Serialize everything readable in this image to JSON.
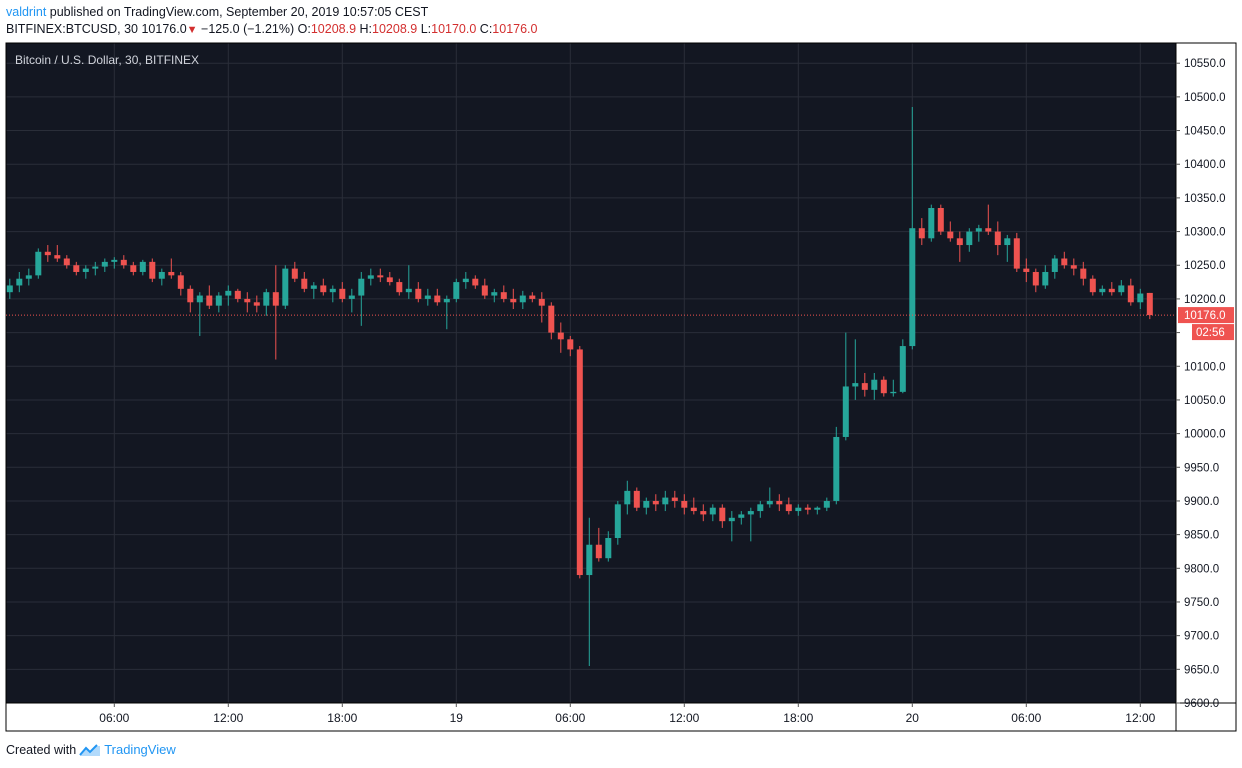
{
  "header": {
    "user": "valdrint",
    "published_text": "published on TradingView.com, September 20, 2019 10:57:05 CEST",
    "symbol": "BITFINEX:BTCUSD, 30",
    "last_price": "10176.0",
    "change": "−125.0 (−1.21%)",
    "o_label": "O:",
    "o_value": "10208.9",
    "h_label": "H:",
    "h_value": "10208.9",
    "l_label": "L:",
    "l_value": "10170.0",
    "c_label": "C:",
    "c_value": "10176.0"
  },
  "footer": {
    "created_with": "Created with",
    "brand": "TradingView"
  },
  "colors": {
    "background": "#131722",
    "grid": "#2a2e39",
    "up": "#26a69a",
    "down": "#ef5350",
    "axis_text": "#b2b5be",
    "price_tag": "#ef5350"
  },
  "chart_data": {
    "type": "candlestick",
    "title": "Bitcoin / U.S. Dollar, 30, BITFINEX",
    "ylim": [
      9600,
      10580
    ],
    "y_ticks": [
      10550,
      10500,
      10450,
      10400,
      10350,
      10300,
      10250,
      10200,
      10150,
      10100,
      10050,
      10000,
      9950,
      9900,
      9850,
      9800,
      9750,
      9700,
      9650,
      9600
    ],
    "y_tick_labels": [
      "10550.0",
      "10500.0",
      "10450.0",
      "10400.0",
      "10350.0",
      "10300.0",
      "10250.0",
      "10200.0",
      "",
      "10100.0",
      "10050.0",
      "10000.0",
      "9950.0",
      "9900.0",
      "9850.0",
      "9800.0",
      "9750.0",
      "9700.0",
      "9650.0",
      "9600.0"
    ],
    "x_ticks": [
      {
        "bar": 11,
        "label": "06:00"
      },
      {
        "bar": 23,
        "label": "12:00"
      },
      {
        "bar": 35,
        "label": "18:00"
      },
      {
        "bar": 47,
        "label": "19"
      },
      {
        "bar": 59,
        "label": "06:00"
      },
      {
        "bar": 71,
        "label": "12:00"
      },
      {
        "bar": 83,
        "label": "18:00"
      },
      {
        "bar": 95,
        "label": "20"
      },
      {
        "bar": 107,
        "label": "06:00"
      },
      {
        "bar": 119,
        "label": "12:00"
      }
    ],
    "current_price": 10176.0,
    "current_price_label": "10176.0",
    "countdown": "02:56",
    "candles": [
      [
        10210,
        10230,
        10200,
        10220
      ],
      [
        10220,
        10240,
        10210,
        10230
      ],
      [
        10230,
        10245,
        10220,
        10235
      ],
      [
        10235,
        10275,
        10230,
        10270
      ],
      [
        10270,
        10280,
        10255,
        10265
      ],
      [
        10265,
        10280,
        10255,
        10260
      ],
      [
        10260,
        10265,
        10245,
        10250
      ],
      [
        10250,
        10255,
        10235,
        10240
      ],
      [
        10240,
        10250,
        10230,
        10245
      ],
      [
        10245,
        10255,
        10235,
        10248
      ],
      [
        10248,
        10260,
        10240,
        10255
      ],
      [
        10255,
        10262,
        10245,
        10258
      ],
      [
        10258,
        10265,
        10245,
        10250
      ],
      [
        10250,
        10255,
        10235,
        10240
      ],
      [
        10240,
        10258,
        10235,
        10255
      ],
      [
        10255,
        10260,
        10225,
        10230
      ],
      [
        10230,
        10245,
        10220,
        10240
      ],
      [
        10240,
        10260,
        10230,
        10235
      ],
      [
        10235,
        10240,
        10205,
        10215
      ],
      [
        10215,
        10220,
        10180,
        10195
      ],
      [
        10195,
        10210,
        10145,
        10205
      ],
      [
        10205,
        10220,
        10185,
        10190
      ],
      [
        10190,
        10210,
        10180,
        10205
      ],
      [
        10205,
        10220,
        10190,
        10212
      ],
      [
        10212,
        10215,
        10195,
        10200
      ],
      [
        10200,
        10210,
        10180,
        10195
      ],
      [
        10195,
        10205,
        10180,
        10190
      ],
      [
        10190,
        10215,
        10175,
        10210
      ],
      [
        10210,
        10250,
        10110,
        10190
      ],
      [
        10190,
        10250,
        10185,
        10245
      ],
      [
        10245,
        10255,
        10225,
        10230
      ],
      [
        10230,
        10240,
        10210,
        10215
      ],
      [
        10215,
        10225,
        10200,
        10220
      ],
      [
        10220,
        10230,
        10205,
        10210
      ],
      [
        10210,
        10220,
        10195,
        10215
      ],
      [
        10215,
        10225,
        10195,
        10200
      ],
      [
        10200,
        10215,
        10180,
        10205
      ],
      [
        10205,
        10240,
        10160,
        10230
      ],
      [
        10230,
        10245,
        10220,
        10235
      ],
      [
        10235,
        10245,
        10225,
        10232
      ],
      [
        10232,
        10240,
        10220,
        10225
      ],
      [
        10225,
        10230,
        10205,
        10210
      ],
      [
        10210,
        10250,
        10200,
        10215
      ],
      [
        10215,
        10225,
        10195,
        10200
      ],
      [
        10200,
        10215,
        10190,
        10205
      ],
      [
        10205,
        10215,
        10190,
        10195
      ],
      [
        10195,
        10205,
        10155,
        10200
      ],
      [
        10200,
        10230,
        10195,
        10225
      ],
      [
        10225,
        10240,
        10215,
        10230
      ],
      [
        10230,
        10235,
        10215,
        10220
      ],
      [
        10220,
        10230,
        10200,
        10205
      ],
      [
        10205,
        10215,
        10195,
        10210
      ],
      [
        10210,
        10220,
        10195,
        10200
      ],
      [
        10200,
        10215,
        10185,
        10195
      ],
      [
        10195,
        10212,
        10185,
        10205
      ],
      [
        10205,
        10210,
        10195,
        10200
      ],
      [
        10200,
        10210,
        10165,
        10190
      ],
      [
        10190,
        10195,
        10140,
        10150
      ],
      [
        10150,
        10165,
        10120,
        10140
      ],
      [
        10140,
        10145,
        10115,
        10125
      ],
      [
        10125,
        10130,
        9785,
        9790
      ],
      [
        9790,
        9875,
        9655,
        9835
      ],
      [
        9835,
        9860,
        9810,
        9815
      ],
      [
        9815,
        9855,
        9810,
        9845
      ],
      [
        9845,
        9900,
        9835,
        9895
      ],
      [
        9895,
        9930,
        9880,
        9915
      ],
      [
        9915,
        9920,
        9885,
        9890
      ],
      [
        9890,
        9905,
        9880,
        9900
      ],
      [
        9900,
        9910,
        9885,
        9895
      ],
      [
        9895,
        9915,
        9885,
        9905
      ],
      [
        9905,
        9915,
        9890,
        9900
      ],
      [
        9900,
        9910,
        9880,
        9890
      ],
      [
        9890,
        9905,
        9880,
        9885
      ],
      [
        9885,
        9895,
        9870,
        9880
      ],
      [
        9880,
        9895,
        9870,
        9890
      ],
      [
        9890,
        9895,
        9860,
        9870
      ],
      [
        9870,
        9885,
        9840,
        9875
      ],
      [
        9875,
        9885,
        9865,
        9880
      ],
      [
        9880,
        9890,
        9840,
        9885
      ],
      [
        9885,
        9900,
        9875,
        9895
      ],
      [
        9895,
        9920,
        9890,
        9900
      ],
      [
        9900,
        9910,
        9885,
        9895
      ],
      [
        9895,
        9905,
        9880,
        9885
      ],
      [
        9885,
        9895,
        9878,
        9890
      ],
      [
        9890,
        9895,
        9880,
        9887
      ],
      [
        9887,
        9892,
        9880,
        9890
      ],
      [
        9890,
        9905,
        9885,
        9900
      ],
      [
        9900,
        10010,
        9895,
        9995
      ],
      [
        9995,
        10150,
        9990,
        10070
      ],
      [
        10070,
        10140,
        10050,
        10075
      ],
      [
        10075,
        10090,
        10055,
        10065
      ],
      [
        10065,
        10090,
        10050,
        10080
      ],
      [
        10080,
        10085,
        10055,
        10060
      ],
      [
        10060,
        10080,
        10055,
        10062
      ],
      [
        10062,
        10140,
        10060,
        10130
      ],
      [
        10130,
        10485,
        10125,
        10305
      ],
      [
        10305,
        10320,
        10280,
        10290
      ],
      [
        10290,
        10340,
        10285,
        10335
      ],
      [
        10335,
        10340,
        10295,
        10300
      ],
      [
        10300,
        10315,
        10285,
        10290
      ],
      [
        10290,
        10300,
        10255,
        10280
      ],
      [
        10280,
        10305,
        10270,
        10300
      ],
      [
        10300,
        10310,
        10285,
        10305
      ],
      [
        10305,
        10340,
        10295,
        10300
      ],
      [
        10300,
        10315,
        10265,
        10280
      ],
      [
        10280,
        10295,
        10255,
        10290
      ],
      [
        10290,
        10298,
        10240,
        10245
      ],
      [
        10245,
        10260,
        10225,
        10240
      ],
      [
        10240,
        10245,
        10210,
        10220
      ],
      [
        10220,
        10250,
        10215,
        10240
      ],
      [
        10240,
        10265,
        10230,
        10260
      ],
      [
        10260,
        10270,
        10245,
        10250
      ],
      [
        10250,
        10260,
        10235,
        10245
      ],
      [
        10245,
        10255,
        10220,
        10230
      ],
      [
        10230,
        10235,
        10205,
        10210
      ],
      [
        10210,
        10220,
        10205,
        10215
      ],
      [
        10215,
        10225,
        10205,
        10210
      ],
      [
        10210,
        10228,
        10205,
        10220
      ],
      [
        10220,
        10230,
        10190,
        10195
      ],
      [
        10195,
        10215,
        10185,
        10208
      ],
      [
        10208.9,
        10208.9,
        10170,
        10176
      ]
    ]
  }
}
